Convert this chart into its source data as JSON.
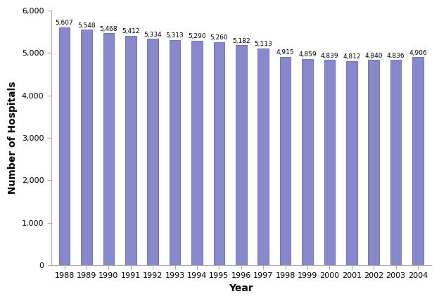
{
  "years": [
    "1988",
    "1989",
    "1990",
    "1991",
    "1992",
    "1993",
    "1994",
    "1995",
    "1996",
    "1997",
    "1998",
    "1999",
    "2000",
    "2001",
    "2002",
    "2003",
    "2004"
  ],
  "values": [
    5607,
    5548,
    5468,
    5412,
    5334,
    5313,
    5290,
    5260,
    5182,
    5113,
    4915,
    4859,
    4839,
    4812,
    4840,
    4836,
    4906
  ],
  "bar_color": "#8888cc",
  "bar_edgecolor": "#6666aa",
  "xlabel": "Year",
  "ylabel": "Number of Hospitals",
  "ylim": [
    0,
    6000
  ],
  "yticks": [
    0,
    1000,
    2000,
    3000,
    4000,
    5000,
    6000
  ],
  "background_color": "#ffffff",
  "label_fontsize": 6.5,
  "axis_label_fontsize": 10,
  "tick_label_fontsize": 8,
  "bar_width": 0.5
}
